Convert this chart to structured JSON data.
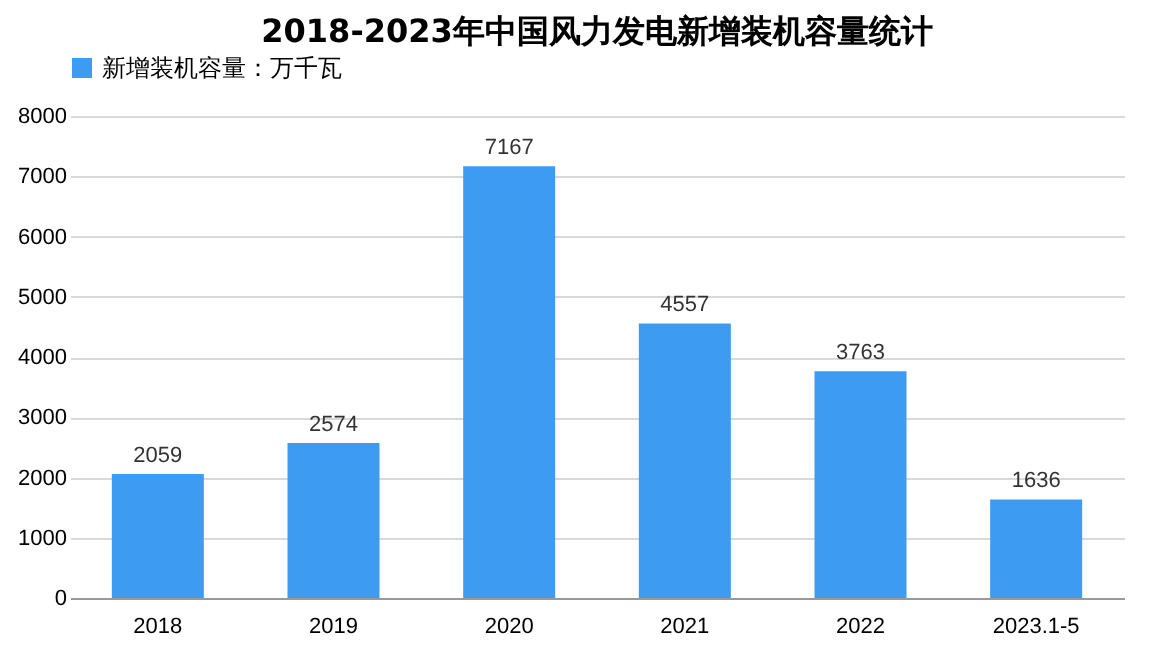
{
  "chart_data": {
    "type": "bar",
    "title": "2018-2023年中国风力发电新增装机容量统计",
    "categories": [
      "2018",
      "2019",
      "2020",
      "2021",
      "2022",
      "2023.1-5"
    ],
    "series": [
      {
        "name": "新增装机容量：万千瓦",
        "color": "#3d9cf2",
        "values": [
          2059,
          2574,
          7167,
          4557,
          3763,
          1636
        ]
      }
    ],
    "ylim": [
      0,
      8000
    ],
    "yticks": [
      0,
      1000,
      2000,
      3000,
      4000,
      5000,
      6000,
      7000,
      8000
    ],
    "grid": "y",
    "legend": "top",
    "data_labels": true
  }
}
